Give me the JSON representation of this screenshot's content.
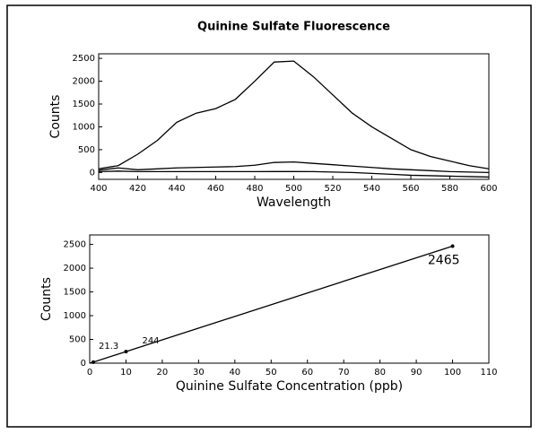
{
  "chart_data": [
    {
      "type": "line",
      "title": "Quinine Sulfate Fluorescence",
      "x_label": "Wavelength",
      "y_label": "Counts",
      "x": [
        400,
        410,
        420,
        430,
        440,
        450,
        460,
        470,
        480,
        490,
        500,
        510,
        520,
        530,
        540,
        550,
        560,
        570,
        580,
        590,
        600
      ],
      "series": [
        {
          "color": "#000000",
          "values": [
            80,
            150,
            400,
            700,
            1100,
            1300,
            1400,
            1600,
            2000,
            2420,
            2440,
            2100,
            1700,
            1300,
            1000,
            750,
            500,
            350,
            250,
            150,
            80
          ]
        },
        {
          "color": "#000000",
          "values": [
            50,
            100,
            60,
            80,
            100,
            110,
            120,
            130,
            160,
            220,
            230,
            200,
            170,
            140,
            110,
            80,
            60,
            40,
            20,
            10,
            0
          ]
        },
        {
          "color": "#000000",
          "values": [
            20,
            30,
            20,
            20,
            20,
            20,
            20,
            20,
            20,
            21,
            21,
            20,
            10,
            0,
            -20,
            -40,
            -60,
            -70,
            -80,
            -90,
            -100
          ]
        }
      ],
      "xlim": [
        400,
        600
      ],
      "xticks": [
        400,
        420,
        440,
        460,
        480,
        500,
        520,
        540,
        560,
        580,
        600
      ],
      "ylim": [
        -150,
        2600
      ],
      "yticks": [
        0,
        500,
        1000,
        1500,
        2000,
        2500
      ]
    },
    {
      "type": "scatter",
      "x_label": "Quinine Sulfate Concentration (ppb)",
      "y_label": "Counts",
      "x": [
        1,
        10,
        100
      ],
      "series": [
        {
          "color": "#000000",
          "values": [
            21.3,
            244,
            2465
          ]
        }
      ],
      "connect": true,
      "data_labels": true,
      "xlim": [
        0,
        110
      ],
      "xticks": [
        0,
        10,
        20,
        30,
        40,
        50,
        60,
        70,
        80,
        90,
        100,
        110
      ],
      "ylim": [
        0,
        2700
      ],
      "yticks": [
        0,
        500,
        1000,
        1500,
        2000,
        2500
      ]
    }
  ]
}
